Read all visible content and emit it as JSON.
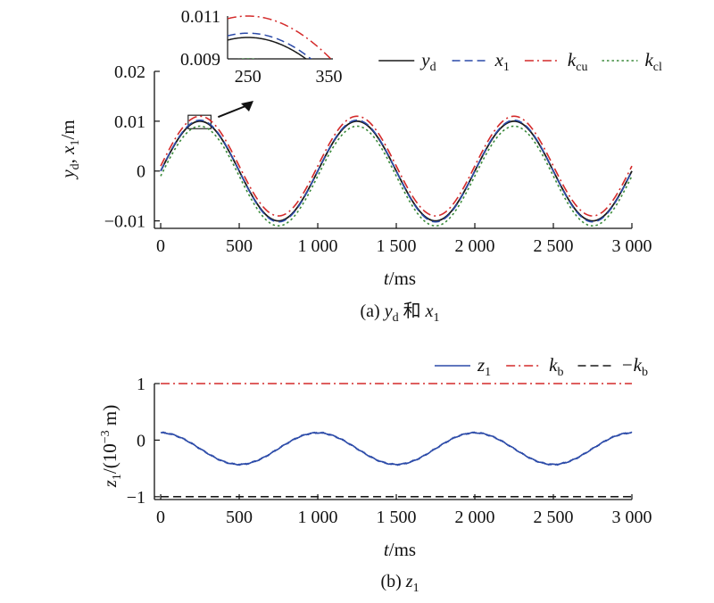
{
  "chart_data": [
    {
      "type": "line",
      "caption": {
        "prefix": "(a) ",
        "y": "y",
        "y_sub": "d",
        "mid": " 和 ",
        "x": "x",
        "x_sub": "1"
      },
      "xlabel": {
        "var": "t",
        "unit": "/ms"
      },
      "ylabel": {
        "y": "y",
        "y_sub": "d",
        "sep": ", ",
        "x": "x",
        "x_sub": "1",
        "unit": "/m"
      },
      "xlim": [
        -40,
        3000
      ],
      "ylim": [
        -0.0115,
        0.02
      ],
      "xticks": [
        0,
        500,
        1000,
        1500,
        2000,
        2500,
        3000
      ],
      "xtick_labels": [
        "0",
        "500",
        "1 000",
        "1 500",
        "2 000",
        "2 500",
        "3 000"
      ],
      "yticks": [
        -0.01,
        0,
        0.01,
        0.02
      ],
      "ytick_labels": [
        "−0.01",
        "0",
        "0.01",
        "0.02"
      ],
      "signal": {
        "form": "A·sin(2π·t/P)",
        "period_ms": 1000,
        "x_range": [
          0,
          3000
        ]
      },
      "series": [
        {
          "name": "y",
          "sub": "d",
          "amplitude": 0.01,
          "offset": 0,
          "color": "#1a1a1a",
          "dash": "solid"
        },
        {
          "name": "x",
          "sub": "1",
          "amplitude": 0.0102,
          "offset": 0.0,
          "color": "#2b4aa8",
          "dash": "dashed"
        },
        {
          "name": "k",
          "sub": "cu",
          "amplitude": 0.01,
          "offset": 0.001,
          "color": "#d42a2a",
          "dash": "dashdot"
        },
        {
          "name": "k",
          "sub": "cl",
          "amplitude": 0.01,
          "offset": -0.001,
          "color": "#3a8a3a",
          "dash": "dotted"
        }
      ],
      "legend_position": "top-right",
      "inset": {
        "xlim": [
          225,
          355
        ],
        "ylim": [
          0.009,
          0.011
        ],
        "xticks": [
          250,
          350
        ],
        "xtick_labels": [
          "250",
          "350"
        ],
        "yticks": [
          0.009,
          0.011
        ],
        "ytick_labels": [
          "0.009",
          "0.011"
        ],
        "region": {
          "x": [
            175,
            320
          ],
          "y": [
            0.0085,
            0.0112
          ]
        }
      }
    },
    {
      "type": "line",
      "caption": {
        "prefix": "(b) ",
        "z": "z",
        "z_sub": "1"
      },
      "xlabel": {
        "var": "t",
        "unit": "/ms"
      },
      "ylabel": {
        "var": "z",
        "sub": "1",
        "unit_pre": "/(10",
        "exp": "−3",
        "unit_post": " m)"
      },
      "xlim": [
        -40,
        3000
      ],
      "ylim": [
        -1.05,
        1.0
      ],
      "xticks": [
        0,
        500,
        1000,
        1500,
        2000,
        2500,
        3000
      ],
      "xtick_labels": [
        "0",
        "500",
        "1 000",
        "1 500",
        "2 000",
        "2 500",
        "3 000"
      ],
      "yticks": [
        -1,
        0,
        1
      ],
      "ytick_labels": [
        "−1",
        "0",
        "1"
      ],
      "series": [
        {
          "name": "z",
          "sub": "1",
          "color": "#2b4aa8",
          "dash": "solid",
          "form": "-0.15 + 0.28·cos(2π·t/1000)",
          "x_range": [
            0,
            3000
          ]
        },
        {
          "name": "k",
          "sub": "b",
          "value": 1,
          "color": "#d42a2a",
          "dash": "dashdot"
        },
        {
          "name": "−k",
          "sub": "b",
          "value": -1,
          "color": "#1a1a1a",
          "dash": "dashed"
        }
      ],
      "legend_position": "top-right"
    }
  ]
}
